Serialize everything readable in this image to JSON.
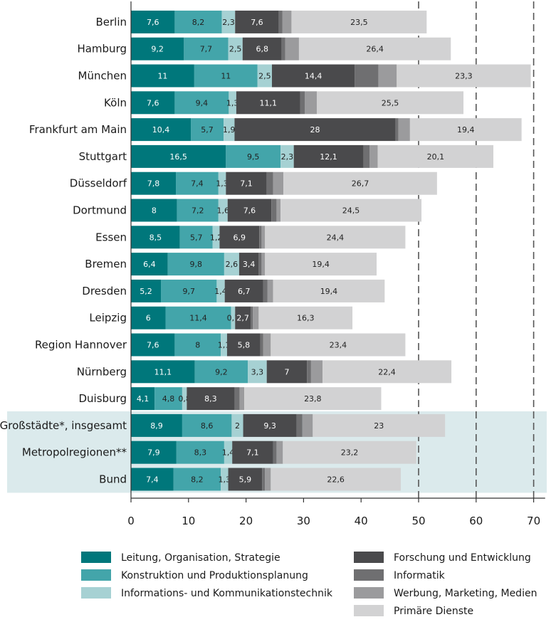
{
  "chart_data": {
    "type": "bar",
    "orientation": "horizontal",
    "stacked": true,
    "categories": [
      "Berlin",
      "Hamburg",
      "München",
      "Köln",
      "Frankfurt am Main",
      "Stuttgart",
      "Düsseldorf",
      "Dortmund",
      "Essen",
      "Bremen",
      "Dresden",
      "Leipzig",
      "Region Hannover",
      "Nürnberg",
      "Duisburg",
      "Großstädte*, insgesamt",
      "Metropolregionen**",
      "Bund"
    ],
    "highlighted_categories": [
      "Großstädte*, insgesamt",
      "Metropolregionen**",
      "Bund"
    ],
    "series": [
      {
        "name": "Leitung, Organisation, Strategie",
        "color": "#00777b",
        "values": [
          7.6,
          9.2,
          11,
          7.6,
          10.4,
          16.5,
          7.8,
          8,
          8.5,
          6.4,
          5.2,
          6,
          7.6,
          11.1,
          4.1,
          8.9,
          7.9,
          7.4
        ],
        "labels": [
          "7,6",
          "9,2",
          "11",
          "7,6",
          "10,4",
          "16,5",
          "7,8",
          "8",
          "8,5",
          "6,4",
          "5,2",
          "6",
          "7,6",
          "11,1",
          "4,1",
          "8,9",
          "7,9",
          "7,4"
        ]
      },
      {
        "name": "Konstruktion und Produktionsplanung",
        "color": "#43a5aa",
        "values": [
          8.2,
          7.7,
          11,
          9.4,
          5.7,
          9.5,
          7.4,
          7.2,
          5.7,
          9.8,
          9.7,
          11.4,
          8,
          9.2,
          4.8,
          8.6,
          8.3,
          8.2
        ],
        "labels": [
          "8,2",
          "7,7",
          "11",
          "9,4",
          "5,7",
          "9,5",
          "7,4",
          "7,2",
          "5,7",
          "9,8",
          "9,7",
          "11,4",
          "8",
          "9,2",
          "4,8",
          "8,6",
          "8,3",
          "8,2"
        ]
      },
      {
        "name": "Informations- und Kommunikationstechnik",
        "color": "#a6d1d3",
        "values": [
          2.3,
          2.5,
          2.5,
          1.3,
          1.9,
          2.3,
          1.3,
          1.6,
          1.2,
          2.6,
          1.4,
          0.7,
          1.1,
          3.3,
          0.8,
          2,
          1.4,
          1.3
        ],
        "labels": [
          "2,3",
          "2,5",
          "2,5",
          "1,3",
          "1,9",
          "2,3",
          "1,3",
          "1,6",
          "1,2",
          "2,6",
          "1,4",
          "0,7",
          "1,1",
          "3,3",
          "0,8",
          "2",
          "1,4",
          "1,3"
        ]
      },
      {
        "name": "Forschung und Entwicklung",
        "color": "#4a4a4c",
        "values": [
          7.6,
          6.8,
          14.4,
          11.1,
          28,
          12.1,
          7.1,
          7.6,
          6.9,
          3.4,
          6.7,
          2.7,
          5.8,
          7,
          8.3,
          9.3,
          7.1,
          5.9
        ],
        "labels": [
          "7,6",
          "6,8",
          "14,4",
          "11,1",
          "28",
          "12,1",
          "7,1",
          "7,6",
          "6,9",
          "3,4",
          "6,7",
          "2,7",
          "5,8",
          "7",
          "8,3",
          "9,3",
          "7,1",
          "5,9"
        ]
      },
      {
        "name": "Informatik",
        "color": "#6f6f71",
        "values": [
          0.6,
          0.6,
          4.1,
          0.8,
          0.5,
          1.1,
          1.1,
          0.9,
          0.4,
          0.5,
          0.7,
          0.4,
          0.5,
          0.7,
          0.9,
          1,
          0.6,
          0.5
        ]
      },
      {
        "name": "Werbung, Marketing, Medien",
        "color": "#9b9b9d",
        "values": [
          1.6,
          2.4,
          3.2,
          2.1,
          2,
          1.4,
          1.8,
          0.7,
          0.6,
          0.6,
          1,
          1,
          1.3,
          2,
          0.8,
          1.8,
          1.1,
          1
        ]
      },
      {
        "name": "Primäre Dienste",
        "color": "#d2d2d3",
        "values": [
          23.5,
          26.4,
          23.3,
          25.5,
          19.4,
          20.1,
          26.7,
          24.5,
          24.4,
          19.4,
          19.4,
          16.3,
          23.4,
          22.4,
          23.8,
          23,
          23.2,
          22.6
        ],
        "labels": [
          "23,5",
          "26,4",
          "23,3",
          "25,5",
          "19,4",
          "20,1",
          "26,7",
          "24,5",
          "24,4",
          "19,4",
          "19,4",
          "16,3",
          "23,4",
          "22,4",
          "23,8",
          "23",
          "23,2",
          "22,6"
        ]
      }
    ],
    "xlim": [
      0,
      72
    ],
    "xticks": [
      0,
      10,
      20,
      30,
      40,
      50,
      60,
      70
    ],
    "dashed_gridlines": [
      50,
      60,
      70
    ],
    "legend_position": "bottom",
    "colors": {
      "highlight_band": "#dbeaec",
      "axis": "#333333",
      "gridline": "#555555"
    }
  }
}
